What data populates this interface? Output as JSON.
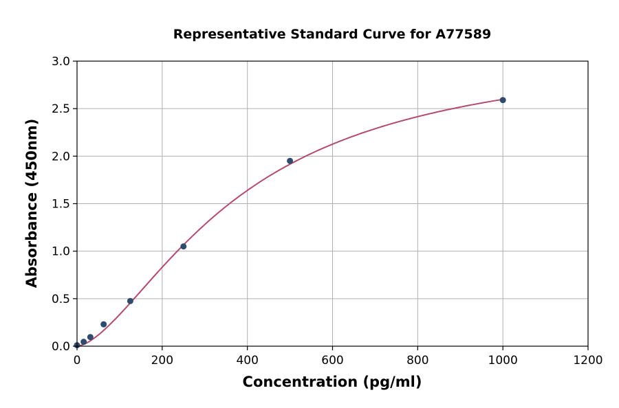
{
  "chart_data": {
    "type": "scatter",
    "title": "Representative Standard Curve for A77589",
    "xlabel": "Concentration (pg/ml)",
    "ylabel": "Absorbance (450nm)",
    "xlim": [
      0,
      1200
    ],
    "ylim": [
      0,
      3.0
    ],
    "xticks": [
      "0",
      "200",
      "400",
      "600",
      "800",
      "1000",
      "1200"
    ],
    "yticks": [
      "0.0",
      "0.5",
      "1.0",
      "1.5",
      "2.0",
      "2.5",
      "3.0"
    ],
    "grid": true,
    "legend": "none",
    "points": {
      "x": [
        0,
        15.6,
        31.25,
        62.5,
        125,
        250,
        500,
        1000
      ],
      "y": [
        0.01,
        0.046,
        0.096,
        0.23,
        0.475,
        1.05,
        1.95,
        2.59
      ]
    },
    "fit": "4-parameter logistic curve",
    "colors": {
      "points": "#2f4b6e",
      "curve": "#b5496e",
      "grid": "#b0b0b0"
    }
  }
}
